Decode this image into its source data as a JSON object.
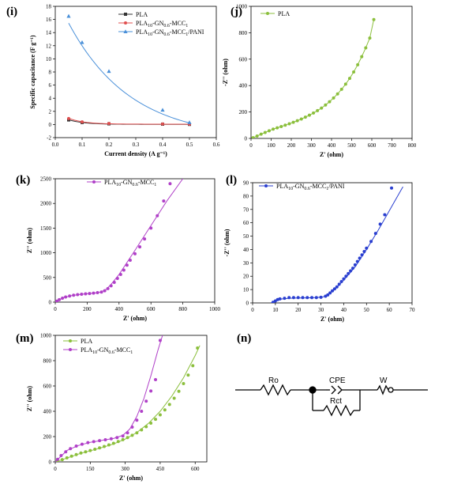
{
  "panels": {
    "i": "(i)",
    "j": "(j)",
    "k": "(k)",
    "l": "(l)",
    "m": "(m)",
    "n": "(n)"
  },
  "chart_data": [
    {
      "id": "i",
      "type": "line",
      "xlabel": "Current density (A g⁻¹)",
      "ylabel": "Specific capacitance (F g⁻¹)",
      "xlim": [
        0.0,
        0.6
      ],
      "ylim": [
        -2,
        18
      ],
      "xticks": [
        "0.0",
        "0.1",
        "0.2",
        "0.3",
        "0.4",
        "0.5",
        "0.6"
      ],
      "yticks": [
        "-2",
        "0",
        "2",
        "4",
        "6",
        "8",
        "10",
        "12",
        "14",
        "16",
        "18"
      ],
      "x": [
        0.05,
        0.1,
        0.2,
        0.4,
        0.5
      ],
      "series": [
        {
          "name": "PLA",
          "color": "#333333",
          "marker": "square",
          "values": [
            0.7,
            0.3,
            0.1,
            0.05,
            0.02
          ]
        },
        {
          "name": "PLA10-GN0.6-MCC1",
          "color": "#e05050",
          "marker": "circle",
          "values": [
            0.9,
            0.4,
            0.15,
            0.08,
            0.05
          ]
        },
        {
          "name": "PLA10-GN0.6-MCC1/PANI",
          "color": "#4a90d9",
          "marker": "triangle",
          "values": [
            16.5,
            12.5,
            8.1,
            2.2,
            0.3
          ]
        }
      ],
      "legend": "top-right"
    },
    {
      "id": "j",
      "type": "scatter",
      "xlabel": "Z' (ohm)",
      "ylabel": "-Z'' (ohm)",
      "xlim": [
        0,
        800
      ],
      "ylim": [
        0,
        1000
      ],
      "xticks": [
        "0",
        "100",
        "200",
        "300",
        "400",
        "500",
        "600",
        "700",
        "800"
      ],
      "yticks": [
        "0",
        "200",
        "400",
        "600",
        "800",
        "1000"
      ],
      "legend": "top-left",
      "series": [
        {
          "name": "PLA",
          "color": "#8bbf3c",
          "x": [
            10,
            30,
            50,
            70,
            90,
            110,
            130,
            150,
            170,
            190,
            210,
            230,
            250,
            270,
            290,
            310,
            330,
            350,
            370,
            390,
            410,
            430,
            450,
            470,
            490,
            510,
            530,
            550,
            570,
            590,
            610
          ],
          "y": [
            5,
            18,
            32,
            45,
            58,
            70,
            80,
            90,
            100,
            111,
            122,
            134,
            147,
            161,
            176,
            192,
            210,
            230,
            253,
            278,
            306,
            337,
            372,
            411,
            454,
            503,
            558,
            619,
            686,
            760,
            900
          ]
        }
      ]
    },
    {
      "id": "k",
      "type": "scatter",
      "xlabel": "Z' (ohm)",
      "ylabel": "Z'' (ohm)",
      "xlim": [
        0,
        1000
      ],
      "ylim": [
        0,
        2500
      ],
      "xticks": [
        "0",
        "200",
        "400",
        "600",
        "800",
        "1000"
      ],
      "yticks": [
        "0",
        "500",
        "1000",
        "1500",
        "2000",
        "2500"
      ],
      "legend": "top-left",
      "series": [
        {
          "name": "PLA10-GN0.6-MCC1",
          "color": "#b040c8",
          "x": [
            10,
            25,
            45,
            65,
            90,
            115,
            140,
            165,
            190,
            215,
            240,
            265,
            290,
            310,
            330,
            350,
            370,
            390,
            410,
            430,
            450,
            470,
            500,
            530,
            560,
            600,
            640,
            680,
            720
          ],
          "y": [
            20,
            50,
            80,
            105,
            125,
            140,
            152,
            160,
            168,
            175,
            183,
            192,
            205,
            230,
            275,
            330,
            400,
            480,
            560,
            650,
            750,
            850,
            980,
            1120,
            1280,
            1500,
            1750,
            2050,
            2400
          ],
          "fit_x": [
            0,
            50,
            100,
            150,
            200,
            250,
            290,
            320,
            350,
            400,
            500,
            600,
            700,
            800
          ],
          "fit_y": [
            0,
            90,
            130,
            155,
            170,
            185,
            210,
            260,
            360,
            560,
            1050,
            1550,
            2050,
            2500
          ]
        }
      ]
    },
    {
      "id": "l",
      "type": "scatter",
      "xlabel": "Z' (ohm)",
      "ylabel": "-Z'' (ohm)",
      "xlim": [
        0,
        70
      ],
      "ylim": [
        0,
        90
      ],
      "xticks": [
        "0",
        "10",
        "20",
        "30",
        "40",
        "50",
        "60",
        "70"
      ],
      "yticks": [
        "0",
        "10",
        "20",
        "30",
        "40",
        "50",
        "60",
        "70",
        "80",
        "90"
      ],
      "legend": "top-left",
      "series": [
        {
          "name": "PLA10-GN0.6-MCC1/PANI",
          "color": "#2a3fd0",
          "x": [
            9,
            10,
            11,
            12,
            14,
            16,
            18,
            20,
            22,
            24,
            26,
            28,
            30,
            32,
            33,
            34,
            35,
            36,
            37,
            38,
            39,
            40,
            41,
            42,
            43,
            44,
            45,
            46,
            47,
            48,
            49,
            50,
            52,
            54,
            56,
            58,
            61
          ],
          "y": [
            0.5,
            1.5,
            2.5,
            3.0,
            3.5,
            4.0,
            4.0,
            4.0,
            4.0,
            4.0,
            4.0,
            4.0,
            4.2,
            5,
            6,
            7.5,
            9,
            10.5,
            12,
            14,
            16,
            18,
            20,
            22,
            24,
            26,
            28.5,
            31,
            33.5,
            36,
            38.5,
            41,
            46,
            52,
            59,
            66,
            86
          ],
          "fit_x": [
            8,
            12,
            16,
            20,
            24,
            28,
            31,
            33,
            36,
            40,
            45,
            50,
            55,
            60,
            66
          ],
          "fit_y": [
            0,
            2.8,
            3.5,
            3.7,
            3.8,
            4.0,
            4.5,
            6,
            10,
            17,
            27,
            40,
            54,
            69,
            87
          ]
        }
      ]
    },
    {
      "id": "m",
      "type": "scatter",
      "xlabel": "Z' (ohm)",
      "ylabel": "Z'' (ohm)",
      "xlim": [
        0,
        650
      ],
      "ylim": [
        0,
        1000
      ],
      "xticks": [
        "0",
        "150",
        "300",
        "450",
        "600"
      ],
      "yticks": [
        "0",
        "200",
        "400",
        "600",
        "800",
        "1000"
      ],
      "legend": "top-left",
      "series": [
        {
          "name": "PLA",
          "color": "#8bbf3c",
          "x": [
            10,
            30,
            50,
            70,
            90,
            110,
            130,
            150,
            170,
            190,
            210,
            230,
            250,
            270,
            290,
            310,
            330,
            350,
            370,
            390,
            410,
            430,
            450,
            470,
            490,
            510,
            530,
            550,
            570,
            590,
            610
          ],
          "y": [
            5,
            18,
            32,
            45,
            58,
            70,
            80,
            90,
            100,
            111,
            122,
            134,
            147,
            161,
            176,
            192,
            210,
            230,
            253,
            278,
            306,
            337,
            372,
            411,
            454,
            503,
            558,
            619,
            686,
            760,
            900
          ],
          "fit_x": [
            0,
            50,
            100,
            150,
            200,
            250,
            300,
            350,
            400,
            450,
            500,
            550,
            600,
            620
          ],
          "fit_y": [
            0,
            30,
            62,
            88,
            113,
            142,
            180,
            232,
            305,
            400,
            520,
            665,
            840,
            920
          ]
        },
        {
          "name": "PLA10-GN0.6-MCC1",
          "color": "#b040c8",
          "x": [
            10,
            25,
            45,
            65,
            90,
            115,
            140,
            165,
            190,
            215,
            240,
            265,
            290,
            310,
            330,
            350,
            370,
            390,
            410,
            430,
            450
          ],
          "y": [
            20,
            50,
            80,
            105,
            125,
            140,
            152,
            160,
            168,
            175,
            183,
            192,
            205,
            230,
            275,
            330,
            400,
            480,
            560,
            650,
            960
          ],
          "fit_x": [
            0,
            50,
            100,
            150,
            200,
            250,
            290,
            320,
            350,
            380,
            410,
            440,
            460
          ],
          "fit_y": [
            0,
            90,
            130,
            155,
            170,
            185,
            210,
            260,
            360,
            500,
            680,
            880,
            1000
          ]
        }
      ]
    }
  ],
  "circuit": {
    "labels": {
      "ro": "Ro",
      "cpe": "CPE",
      "rct": "Rct",
      "w": "W"
    }
  }
}
